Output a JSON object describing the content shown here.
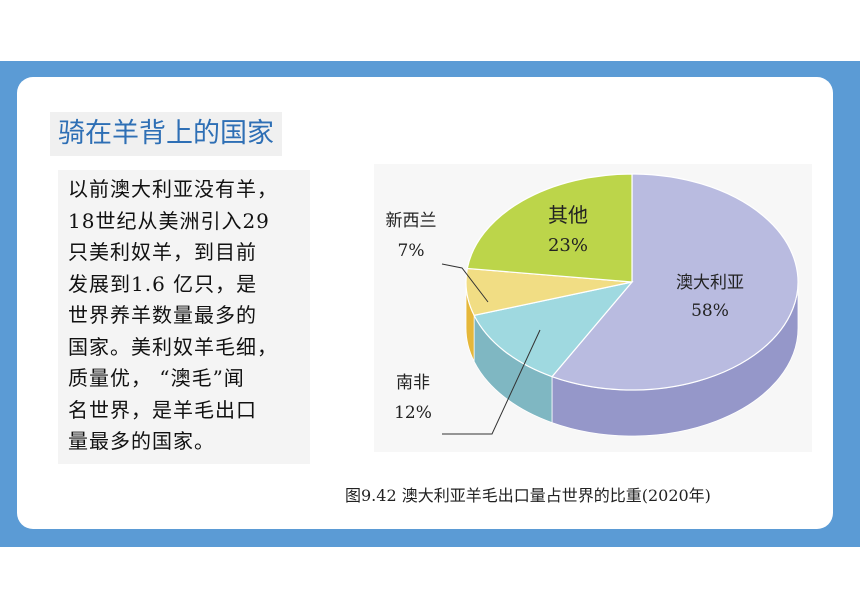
{
  "slide": {
    "title": "骑在羊背上的国家",
    "paragraph_lines": [
      "以前澳大利亚没有羊，",
      "18世纪从美洲引入29",
      "只美利奴羊，到目前",
      "发展到1.6 亿只，是",
      "世界养羊数量最多的",
      "国家。美利奴羊毛细，",
      "质量优，  “澳毛”闻",
      "名世界，是羊毛出口",
      "量最多的国家。"
    ],
    "caption": "图9.42   澳大利亚羊毛出口量占世界的比重(2020年)"
  },
  "colors": {
    "frame": "#5b9bd5",
    "australia": "#b9bbe0",
    "south_africa": "#9fd9e0",
    "new_zealand": "#f1dd84",
    "others": "#bcd54a"
  },
  "chart_data": {
    "type": "pie",
    "title": "",
    "slices": [
      {
        "label": "澳大利亚",
        "value": 58,
        "value_label": "58%",
        "color": "#b9bbe0",
        "side": "#9597c9"
      },
      {
        "label": "南非",
        "value": 12,
        "value_label": "12%",
        "color": "#9fd9e0",
        "side": "#7fb7c2"
      },
      {
        "label": "新西兰",
        "value": 7,
        "value_label": "7%",
        "color": "#f1dd84",
        "side": "#e5b73a"
      },
      {
        "label": "其他",
        "value": 23,
        "value_label": "23%",
        "color": "#bcd54a",
        "side": "#97ad2f"
      }
    ]
  }
}
